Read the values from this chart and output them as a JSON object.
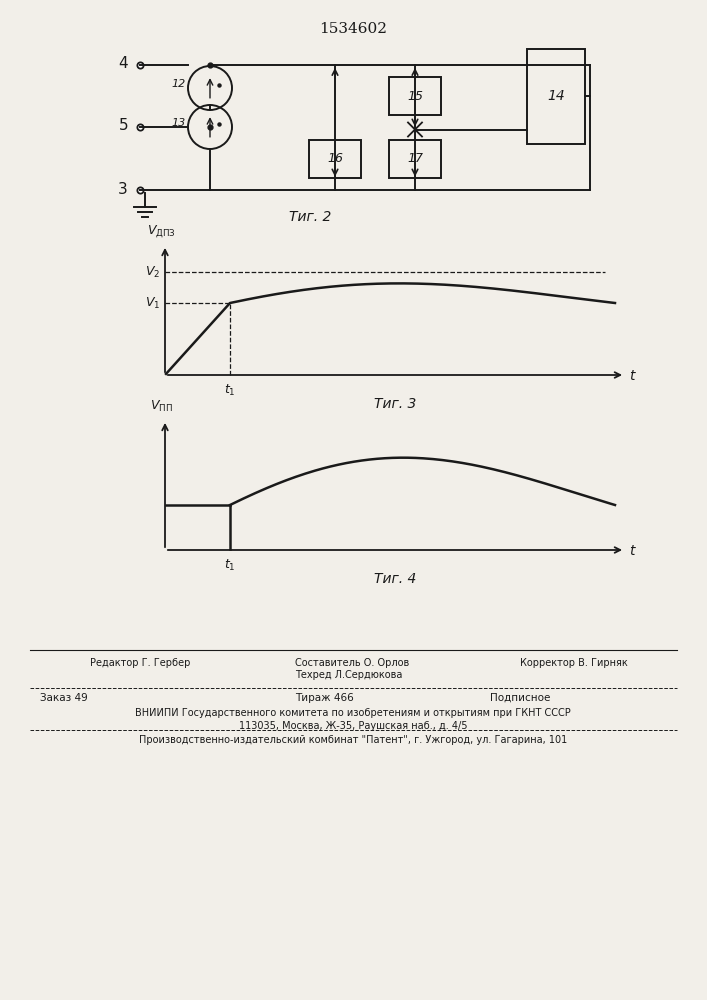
{
  "title": "1534602",
  "bg_color": "#f2efe9",
  "line_color": "#1a1a1a",
  "footer": {
    "line1_left": "Редактор Г. Гербер",
    "line1_center_top": "Составитель О. Орлов",
    "line1_center_bot": "Техред Л.Сердюкова",
    "line1_right": "Корректор В. Гирняк",
    "line2_left": "Заказ 49",
    "line2_center": "Тираж 466",
    "line2_right": "Подписное",
    "line3": "ВНИИПИ Государственного комитета по изобретениям и открытиям при ГКНТ СССР",
    "line4": "113035, Москва, Ж-35, Раушская наб., д. 4/5",
    "line5": "Производственно-издательский комбинат \"Патент\", г. Ужгород, ул. Гагарина, 101"
  }
}
